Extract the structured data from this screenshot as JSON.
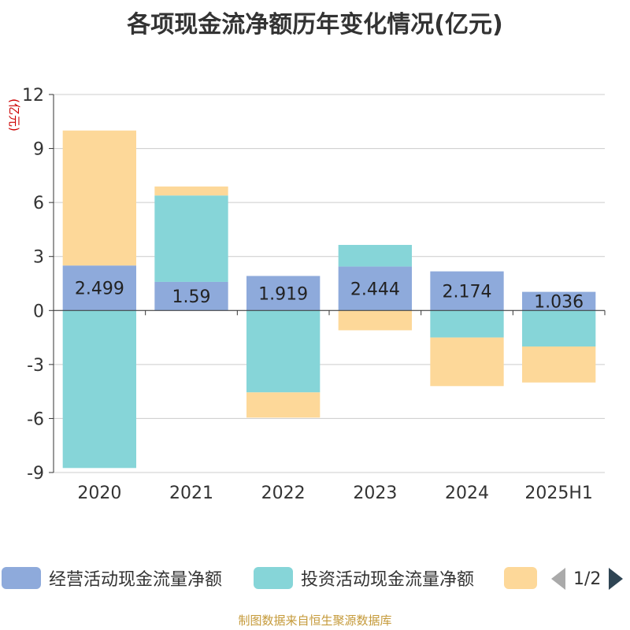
{
  "title": "各项现金流净额历年变化情况(亿元)",
  "y_unit": "(亿元)",
  "source": "制图数据来自恒生聚源数据库",
  "legend": {
    "items": [
      {
        "label": "经营活动现金流量净额",
        "color": "#8eaadb"
      },
      {
        "label": "投资活动现金流量净额",
        "color": "#86d5d8"
      },
      {
        "label": "",
        "color": "#fdd899"
      }
    ],
    "page": "1/2"
  },
  "chart_data": {
    "type": "bar",
    "stacked": true,
    "categories": [
      "2020",
      "2021",
      "2022",
      "2023",
      "2024",
      "2025H1"
    ],
    "series": [
      {
        "name": "经营活动现金流量净额",
        "color": "#8eaadb",
        "values": [
          2.499,
          1.59,
          1.919,
          2.444,
          2.174,
          1.036
        ],
        "show_labels": true
      },
      {
        "name": "投资活动现金流量净额",
        "color": "#86d5d8",
        "values": [
          -8.75,
          4.8,
          -4.55,
          1.2,
          -1.5,
          -2.0
        ],
        "show_labels": false
      },
      {
        "name": "",
        "color": "#fdd899",
        "values": [
          7.5,
          0.5,
          -1.4,
          -1.1,
          -2.7,
          -2.0
        ],
        "show_labels": false
      }
    ],
    "y_ticks": [
      12,
      9,
      6,
      3,
      0,
      -3,
      -6,
      -9
    ],
    "ylim": [
      -9,
      12
    ],
    "grid": true
  }
}
